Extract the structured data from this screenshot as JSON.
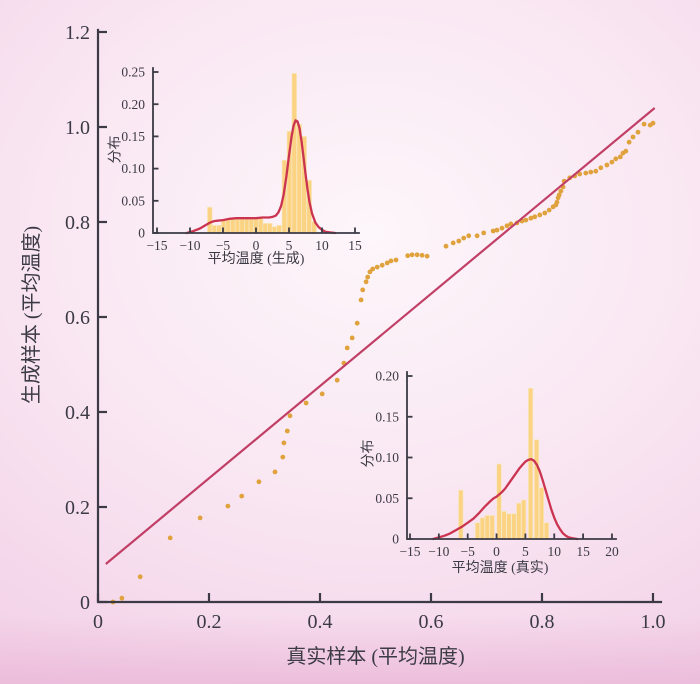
{
  "figure": {
    "background_center": "#fdf6fa",
    "background_edge": "#efc8e1",
    "axis_color": "#3b3a45",
    "point_color": "#e0a23c",
    "ref_line_color": "#c13f66",
    "kde_color": "#cb3450",
    "bar_fill": "#fbd382",
    "bar_edge": "#f7e9c9"
  },
  "chart_data": [
    {
      "id": "main",
      "type": "scatter",
      "title": "",
      "xlabel": "真实样本 (平均温度)",
      "ylabel": "生成样本 (平均温度)",
      "xlim": [
        0,
        1.0
      ],
      "ylim": [
        0,
        1.2
      ],
      "grid": false,
      "legend": "none",
      "xticks": [
        "0",
        "0.2",
        "0.4",
        "0.6",
        "0.8",
        "1.0"
      ],
      "yticks": [
        "0",
        "0.2",
        "0.4",
        "0.6",
        "0.8",
        "1.0",
        "1.2"
      ],
      "reference_line": {
        "x1": 0.014,
        "y1": 0.08,
        "x2": 1.003,
        "y2": 1.04
      },
      "points": [
        [
          0.027,
          0.0
        ],
        [
          0.043,
          0.008
        ],
        [
          0.076,
          0.053
        ],
        [
          0.13,
          0.135
        ],
        [
          0.184,
          0.177
        ],
        [
          0.234,
          0.202
        ],
        [
          0.259,
          0.223
        ],
        [
          0.29,
          0.253
        ],
        [
          0.319,
          0.274
        ],
        [
          0.333,
          0.305
        ],
        [
          0.335,
          0.335
        ],
        [
          0.341,
          0.36
        ],
        [
          0.346,
          0.392
        ],
        [
          0.375,
          0.419
        ],
        [
          0.404,
          0.438
        ],
        [
          0.431,
          0.467
        ],
        [
          0.443,
          0.503
        ],
        [
          0.449,
          0.535
        ],
        [
          0.458,
          0.556
        ],
        [
          0.467,
          0.587
        ],
        [
          0.474,
          0.636
        ],
        [
          0.477,
          0.657
        ],
        [
          0.483,
          0.674
        ],
        [
          0.486,
          0.684
        ],
        [
          0.49,
          0.695
        ],
        [
          0.495,
          0.701
        ],
        [
          0.503,
          0.705
        ],
        [
          0.512,
          0.709
        ],
        [
          0.521,
          0.714
        ],
        [
          0.528,
          0.718
        ],
        [
          0.537,
          0.72
        ],
        [
          0.558,
          0.729
        ],
        [
          0.566,
          0.731
        ],
        [
          0.575,
          0.731
        ],
        [
          0.584,
          0.73
        ],
        [
          0.593,
          0.728
        ],
        [
          0.627,
          0.749
        ],
        [
          0.64,
          0.756
        ],
        [
          0.65,
          0.76
        ],
        [
          0.659,
          0.766
        ],
        [
          0.668,
          0.771
        ],
        [
          0.683,
          0.771
        ],
        [
          0.695,
          0.777
        ],
        [
          0.712,
          0.781
        ],
        [
          0.719,
          0.783
        ],
        [
          0.728,
          0.787
        ],
        [
          0.737,
          0.792
        ],
        [
          0.744,
          0.796
        ],
        [
          0.755,
          0.798
        ],
        [
          0.764,
          0.802
        ],
        [
          0.771,
          0.804
        ],
        [
          0.78,
          0.808
        ],
        [
          0.787,
          0.811
        ],
        [
          0.796,
          0.815
        ],
        [
          0.805,
          0.819
        ],
        [
          0.813,
          0.825
        ],
        [
          0.82,
          0.832
        ],
        [
          0.825,
          0.836
        ],
        [
          0.827,
          0.842
        ],
        [
          0.829,
          0.851
        ],
        [
          0.831,
          0.857
        ],
        [
          0.834,
          0.865
        ],
        [
          0.838,
          0.874
        ],
        [
          0.84,
          0.886
        ],
        [
          0.85,
          0.893
        ],
        [
          0.859,
          0.897
        ],
        [
          0.868,
          0.901
        ],
        [
          0.879,
          0.903
        ],
        [
          0.888,
          0.905
        ],
        [
          0.897,
          0.907
        ],
        [
          0.906,
          0.914
        ],
        [
          0.917,
          0.92
        ],
        [
          0.926,
          0.926
        ],
        [
          0.933,
          0.933
        ],
        [
          0.941,
          0.937
        ],
        [
          0.946,
          0.945
        ],
        [
          0.951,
          0.949
        ],
        [
          0.957,
          0.968
        ],
        [
          0.964,
          0.979
        ],
        [
          0.973,
          0.989
        ],
        [
          0.984,
          1.006
        ],
        [
          0.995,
          1.004
        ],
        [
          1.0,
          1.008
        ]
      ]
    },
    {
      "id": "gen",
      "type": "histogram+kde",
      "title": "",
      "xlabel": "平均温度 (生成)",
      "ylabel": "分布",
      "xlim": [
        -15,
        15
      ],
      "ylim": [
        0,
        0.25
      ],
      "grid": false,
      "xticks": [
        "-15",
        "-10",
        "-5",
        "0",
        "5",
        "10",
        "15"
      ],
      "yticks": [
        "0",
        "0.05",
        "0.10",
        "0.15",
        "0.20",
        "0.25"
      ],
      "bar_width": 0.72,
      "bars": [
        [
          -7.0,
          0.04
        ],
        [
          -6.3,
          0.012
        ],
        [
          -5.6,
          0.012
        ],
        [
          -4.9,
          0.02
        ],
        [
          -4.2,
          0.022
        ],
        [
          -3.5,
          0.022
        ],
        [
          -2.8,
          0.022
        ],
        [
          -2.1,
          0.022
        ],
        [
          -1.4,
          0.022
        ],
        [
          -0.7,
          0.022
        ],
        [
          0.0,
          0.022
        ],
        [
          0.7,
          0.023
        ],
        [
          1.4,
          0.015
        ],
        [
          2.1,
          0.015
        ],
        [
          2.8,
          0.01
        ],
        [
          3.5,
          0.012
        ],
        [
          4.3,
          0.113
        ],
        [
          5.05,
          0.158
        ],
        [
          5.8,
          0.248
        ],
        [
          6.55,
          0.169
        ],
        [
          7.3,
          0.15
        ],
        [
          8.05,
          0.082
        ],
        [
          8.8,
          0.018
        ]
      ],
      "kde": [
        [
          -10.5,
          0.0
        ],
        [
          -9.5,
          0.003
        ],
        [
          -8.5,
          0.007
        ],
        [
          -7.5,
          0.013
        ],
        [
          -7.0,
          0.016
        ],
        [
          -6.5,
          0.018
        ],
        [
          -6.0,
          0.019
        ],
        [
          -5.0,
          0.02
        ],
        [
          -4.0,
          0.022
        ],
        [
          -3.0,
          0.023
        ],
        [
          -2.0,
          0.023
        ],
        [
          -1.0,
          0.023
        ],
        [
          0.0,
          0.023
        ],
        [
          1.0,
          0.024
        ],
        [
          2.0,
          0.024
        ],
        [
          2.5,
          0.025
        ],
        [
          3.0,
          0.027
        ],
        [
          3.4,
          0.032
        ],
        [
          3.8,
          0.042
        ],
        [
          4.2,
          0.06
        ],
        [
          4.6,
          0.088
        ],
        [
          5.0,
          0.12
        ],
        [
          5.4,
          0.15
        ],
        [
          5.7,
          0.167
        ],
        [
          6.0,
          0.175
        ],
        [
          6.3,
          0.173
        ],
        [
          6.6,
          0.162
        ],
        [
          6.9,
          0.143
        ],
        [
          7.2,
          0.118
        ],
        [
          7.5,
          0.092
        ],
        [
          7.8,
          0.068
        ],
        [
          8.1,
          0.048
        ],
        [
          8.5,
          0.03
        ],
        [
          9.0,
          0.016
        ],
        [
          9.5,
          0.009
        ],
        [
          10.0,
          0.005
        ],
        [
          10.5,
          0.002
        ],
        [
          11.2,
          0.001
        ],
        [
          12.0,
          0.0
        ]
      ]
    },
    {
      "id": "real",
      "type": "histogram+kde",
      "title": "",
      "xlabel": "平均温度 (真实)",
      "ylabel": "分布",
      "xlim": [
        -15,
        20
      ],
      "ylim": [
        0,
        0.2
      ],
      "grid": false,
      "xticks": [
        "-15",
        "-10",
        "-5",
        "0",
        "5",
        "10",
        "15",
        "20"
      ],
      "yticks": [
        "0",
        "0.05",
        "0.10",
        "0.15",
        "0.20"
      ],
      "bar_width": 0.8,
      "bars": [
        [
          -6.2,
          0.06
        ],
        [
          -3.3,
          0.02
        ],
        [
          -2.45,
          0.026
        ],
        [
          -1.6,
          0.029
        ],
        [
          -0.75,
          0.029
        ],
        [
          0.45,
          0.092
        ],
        [
          1.3,
          0.034
        ],
        [
          2.15,
          0.031
        ],
        [
          3.0,
          0.031
        ],
        [
          3.85,
          0.044
        ],
        [
          4.7,
          0.048
        ],
        [
          5.9,
          0.185
        ],
        [
          6.95,
          0.122
        ],
        [
          7.8,
          0.063
        ],
        [
          8.65,
          0.02
        ]
      ],
      "kde": [
        [
          -11.0,
          0.0
        ],
        [
          -10.0,
          0.002
        ],
        [
          -9.0,
          0.004
        ],
        [
          -8.0,
          0.007
        ],
        [
          -7.0,
          0.011
        ],
        [
          -6.0,
          0.015
        ],
        [
          -5.0,
          0.02
        ],
        [
          -4.0,
          0.025
        ],
        [
          -3.0,
          0.032
        ],
        [
          -2.0,
          0.04
        ],
        [
          -1.0,
          0.047
        ],
        [
          -0.5,
          0.05
        ],
        [
          0.0,
          0.052
        ],
        [
          0.5,
          0.055
        ],
        [
          1.0,
          0.058
        ],
        [
          1.5,
          0.062
        ],
        [
          2.0,
          0.067
        ],
        [
          2.5,
          0.072
        ],
        [
          3.0,
          0.077
        ],
        [
          3.5,
          0.082
        ],
        [
          4.0,
          0.087
        ],
        [
          4.5,
          0.091
        ],
        [
          5.0,
          0.095
        ],
        [
          5.5,
          0.097
        ],
        [
          6.0,
          0.098
        ],
        [
          6.5,
          0.096
        ],
        [
          7.0,
          0.091
        ],
        [
          7.5,
          0.083
        ],
        [
          8.0,
          0.072
        ],
        [
          8.5,
          0.06
        ],
        [
          9.0,
          0.048
        ],
        [
          9.5,
          0.036
        ],
        [
          10.0,
          0.026
        ],
        [
          10.5,
          0.018
        ],
        [
          11.0,
          0.012
        ],
        [
          11.5,
          0.007
        ],
        [
          12.0,
          0.004
        ],
        [
          12.5,
          0.002
        ],
        [
          13.2,
          0.001
        ],
        [
          14.0,
          0.0
        ]
      ]
    }
  ]
}
